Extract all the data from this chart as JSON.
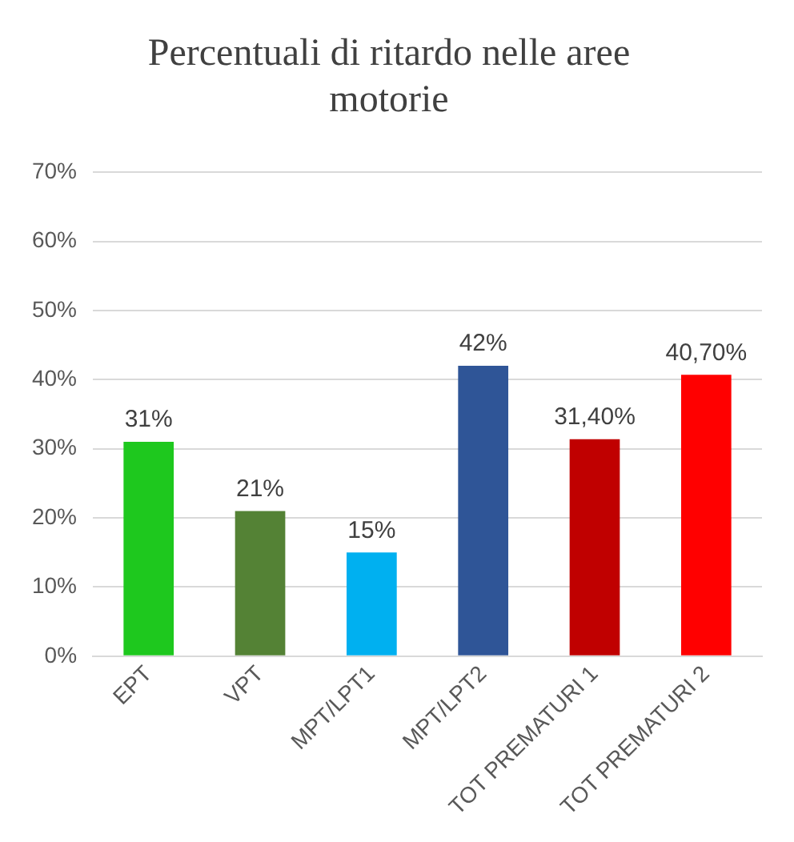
{
  "chart_data": {
    "type": "bar",
    "title": "Percentuali di ritardo nelle aree motorie",
    "categories": [
      "EPT",
      "VPT",
      "MPT/LPT1",
      "MPT/LPT2",
      "TOT PREMATURI 1",
      "TOT PREMATURI 2"
    ],
    "values": [
      31,
      21,
      15,
      42,
      31.4,
      40.7
    ],
    "colors": [
      "#1ec81e",
      "#548235",
      "#00b0f0",
      "#2f5597",
      "#c00000",
      "#ff0000"
    ],
    "value_labels": [
      "31%",
      "21%",
      "15%",
      "42%",
      "31,40%",
      "40,70%"
    ],
    "ylim": [
      0,
      70
    ],
    "yticks": [
      {
        "value": 0,
        "label": "0%"
      },
      {
        "value": 10,
        "label": "10%"
      },
      {
        "value": 20,
        "label": "20%"
      },
      {
        "value": 30,
        "label": "30%"
      },
      {
        "value": 40,
        "label": "40%"
      },
      {
        "value": 50,
        "label": "50%"
      },
      {
        "value": 60,
        "label": "60%"
      },
      {
        "value": 70,
        "label": "70%"
      }
    ],
    "grid": "y",
    "legend": false
  }
}
